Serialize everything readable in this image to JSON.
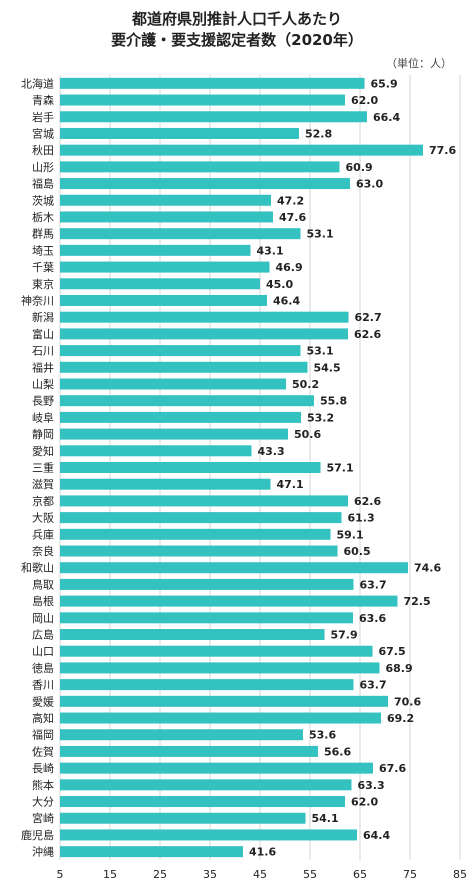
{
  "title_line1": "都道府県別推計人口千人あたり",
  "title_line2": "要介護・要支援認定者数（2020年）",
  "unit_label": "（単位：人）",
  "colors": {
    "bar": "#34c2c0",
    "grid": "#d4d4d4",
    "text": "#222222"
  },
  "chart_data": {
    "type": "bar",
    "orientation": "horizontal",
    "title": "都道府県別推計人口千人あたり 要介護・要支援認定者数（2020年）",
    "unit": "人",
    "xlim": [
      5,
      85
    ],
    "xticks": [
      5,
      15,
      25,
      35,
      45,
      55,
      65,
      75,
      85
    ],
    "grid": true,
    "categories": [
      "北海道",
      "青森",
      "岩手",
      "宮城",
      "秋田",
      "山形",
      "福島",
      "茨城",
      "栃木",
      "群馬",
      "埼玉",
      "千葉",
      "東京",
      "神奈川",
      "新潟",
      "富山",
      "石川",
      "福井",
      "山梨",
      "長野",
      "岐阜",
      "静岡",
      "愛知",
      "三重",
      "滋賀",
      "京都",
      "大阪",
      "兵庫",
      "奈良",
      "和歌山",
      "鳥取",
      "島根",
      "岡山",
      "広島",
      "山口",
      "徳島",
      "香川",
      "愛媛",
      "高知",
      "福岡",
      "佐賀",
      "長崎",
      "熊本",
      "大分",
      "宮崎",
      "鹿児島",
      "沖縄"
    ],
    "values": [
      65.9,
      62.0,
      66.4,
      52.8,
      77.6,
      60.9,
      63.0,
      47.2,
      47.6,
      53.1,
      43.1,
      46.9,
      45.0,
      46.4,
      62.7,
      62.6,
      53.1,
      54.5,
      50.2,
      55.8,
      53.2,
      50.6,
      43.3,
      57.1,
      47.1,
      62.6,
      61.3,
      59.1,
      60.5,
      74.6,
      63.7,
      72.5,
      63.6,
      57.9,
      67.5,
      68.9,
      63.7,
      70.6,
      69.2,
      53.6,
      56.6,
      67.6,
      63.3,
      62.0,
      54.1,
      64.4,
      41.6
    ]
  }
}
